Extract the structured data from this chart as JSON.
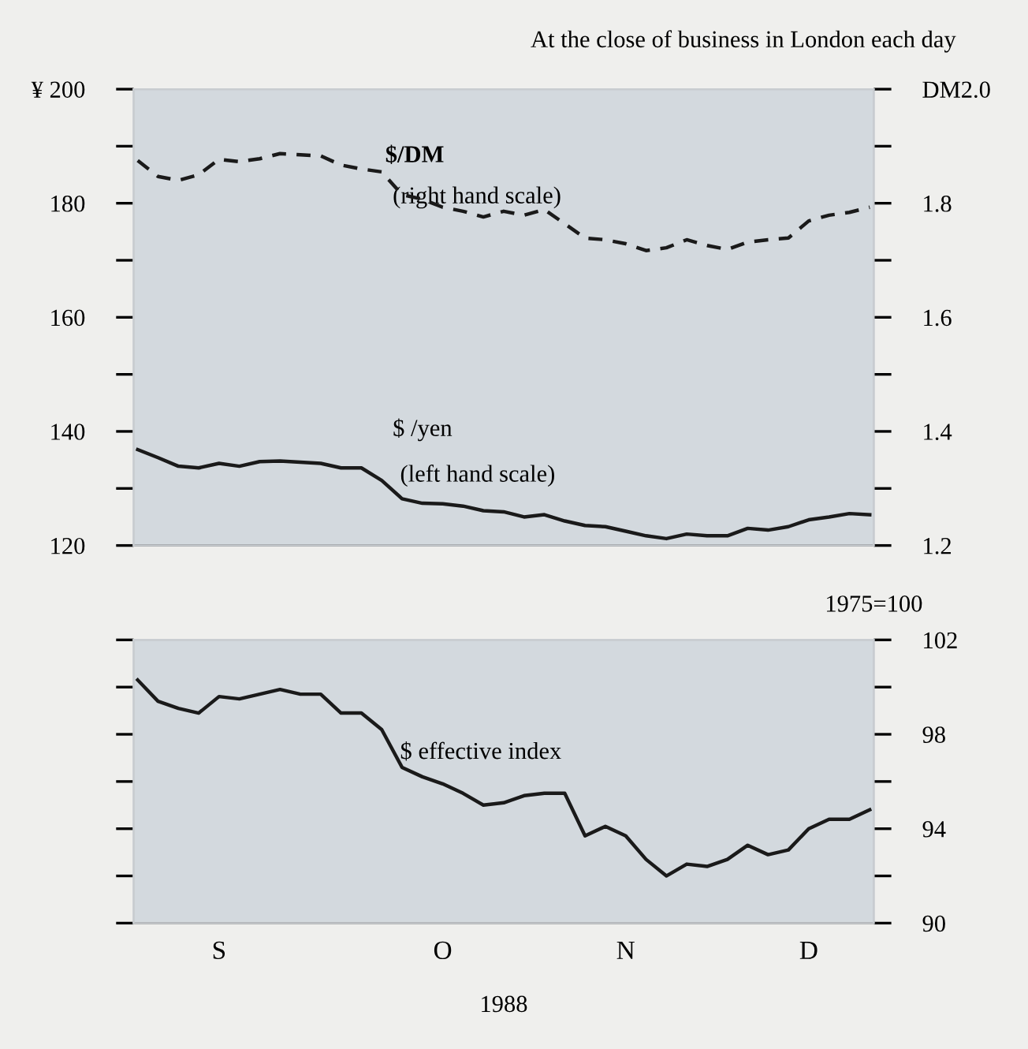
{
  "chart_data": [
    {
      "type": "line",
      "title": "At the close of business in London each day",
      "categories": [
        null,
        null,
        null,
        null,
        null,
        null,
        null,
        null,
        null,
        null,
        null,
        null,
        null,
        null,
        null,
        null,
        null,
        null,
        null,
        null,
        null,
        null,
        null,
        null,
        null,
        null,
        null,
        null,
        null,
        null,
        null,
        null,
        null,
        null,
        null,
        null,
        null
      ],
      "series": [
        {
          "name": "$/DM",
          "axis": "y2",
          "color": "#1a1a1a",
          "line_style": "dashed",
          "values": [
            1.875,
            1.847,
            1.84,
            1.85,
            1.877,
            1.873,
            1.878,
            1.887,
            1.885,
            1.883,
            1.867,
            1.86,
            1.855,
            1.815,
            1.807,
            1.793,
            1.786,
            1.776,
            1.786,
            1.779,
            1.789,
            1.764,
            1.739,
            1.736,
            1.729,
            1.717,
            1.722,
            1.736,
            1.726,
            1.719,
            1.732,
            1.736,
            1.739,
            1.769,
            1.779,
            1.784,
            1.793
          ]
        },
        {
          "name": "$ /yen",
          "axis": "y",
          "color": "#1a1a1a",
          "line_style": "solid",
          "values": [
            136.8,
            135.4,
            133.9,
            133.6,
            134.4,
            133.9,
            134.7,
            134.8,
            134.6,
            134.4,
            133.6,
            133.6,
            131.4,
            128.2,
            127.4,
            127.3,
            126.9,
            126.1,
            125.9,
            125.0,
            125.4,
            124.3,
            123.5,
            123.3,
            122.5,
            121.7,
            121.2,
            122.0,
            121.7,
            121.7,
            123.0,
            122.7,
            123.3,
            124.5,
            125.0,
            125.6,
            125.4
          ]
        }
      ],
      "annotations": [
        "(right hand scale)",
        "(left hand scale)"
      ],
      "ylim": [
        120,
        200
      ],
      "yticks": [
        {
          "value": 120,
          "label": "120"
        },
        {
          "value": 130,
          "label": null
        },
        {
          "value": 140,
          "label": "140"
        },
        {
          "value": 150,
          "label": null
        },
        {
          "value": 160,
          "label": "160"
        },
        {
          "value": 170,
          "label": null
        },
        {
          "value": 180,
          "label": "180"
        },
        {
          "value": 190,
          "label": null
        },
        {
          "value": 200,
          "label": "¥ 200"
        }
      ],
      "y2lim": [
        1.2,
        2.0
      ],
      "y2ticks": [
        {
          "value": 1.2,
          "label": "1.2"
        },
        {
          "value": 1.3,
          "label": null
        },
        {
          "value": 1.4,
          "label": "1.4"
        },
        {
          "value": 1.5,
          "label": null
        },
        {
          "value": 1.6,
          "label": "1.6"
        },
        {
          "value": 1.7,
          "label": null
        },
        {
          "value": 1.8,
          "label": "1.8"
        },
        {
          "value": 1.9,
          "label": null
        },
        {
          "value": 2.0,
          "label": "DM2.0"
        }
      ],
      "tick_labels": "y",
      "grid": false,
      "legend": false
    },
    {
      "type": "line",
      "xlabel": "1988",
      "y2label": "1975=100",
      "categories": [
        null,
        null,
        null,
        null,
        "S",
        null,
        null,
        null,
        null,
        null,
        null,
        null,
        null,
        null,
        null,
        "O",
        null,
        null,
        null,
        null,
        null,
        null,
        null,
        null,
        "N",
        null,
        null,
        null,
        null,
        null,
        null,
        null,
        null,
        "D",
        null,
        null,
        null
      ],
      "series": [
        {
          "name": "$ effective index",
          "axis": "y2",
          "color": "#1a1a1a",
          "line_style": "solid",
          "values": [
            100.3,
            99.4,
            99.1,
            98.9,
            99.6,
            99.5,
            99.7,
            99.9,
            99.7,
            99.7,
            98.9,
            98.9,
            98.2,
            96.6,
            96.2,
            95.9,
            95.5,
            95.0,
            95.1,
            95.4,
            95.5,
            95.5,
            93.7,
            94.1,
            93.7,
            92.7,
            92.0,
            92.5,
            92.4,
            92.7,
            93.3,
            92.9,
            93.1,
            94.0,
            94.4,
            94.4,
            94.8
          ]
        }
      ],
      "y2lim": [
        90,
        102
      ],
      "y2ticks": [
        {
          "value": 90,
          "label": "90"
        },
        {
          "value": 92,
          "label": null
        },
        {
          "value": 94,
          "label": "94"
        },
        {
          "value": 96,
          "label": null
        },
        {
          "value": 98,
          "label": "98"
        },
        {
          "value": 100,
          "label": null
        },
        {
          "value": 102,
          "label": "102"
        }
      ],
      "grid": false,
      "legend": false
    }
  ]
}
